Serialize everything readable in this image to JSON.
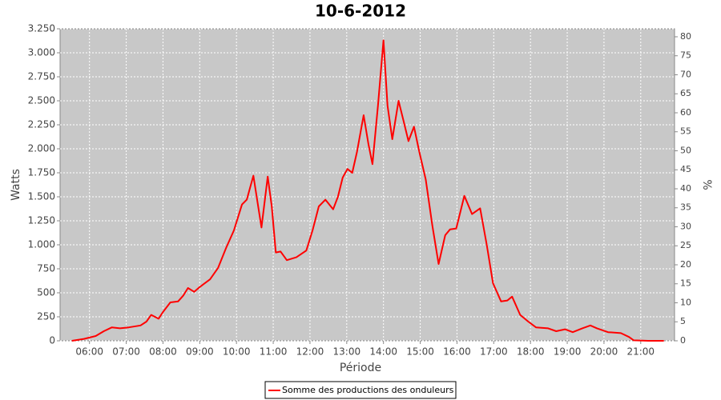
{
  "chart_data": {
    "type": "line",
    "title": "10-6-2012",
    "x_label": "Période",
    "y_label": "Watts",
    "y2_label": "%",
    "xlim": [
      5.2,
      21.92
    ],
    "xticks": [
      {
        "value": 6,
        "label": "06:00"
      },
      {
        "value": 7,
        "label": "07:00"
      },
      {
        "value": 8,
        "label": "08:00"
      },
      {
        "value": 9,
        "label": "09:00"
      },
      {
        "value": 10,
        "label": "10:00"
      },
      {
        "value": 11,
        "label": "11:00"
      },
      {
        "value": 12,
        "label": "12:00"
      },
      {
        "value": 13,
        "label": "13:00"
      },
      {
        "value": 14,
        "label": "14:00"
      },
      {
        "value": 15,
        "label": "15:00"
      },
      {
        "value": 16,
        "label": "16:00"
      },
      {
        "value": 17,
        "label": "17:00"
      },
      {
        "value": 18,
        "label": "18:00"
      },
      {
        "value": 19,
        "label": "19:00"
      },
      {
        "value": 20,
        "label": "20:00"
      },
      {
        "value": 21,
        "label": "21:00"
      }
    ],
    "ylim": [
      0,
      3250
    ],
    "yticks": [
      0,
      250,
      500,
      750,
      {
        "value": 1000,
        "label": "1.000"
      },
      {
        "value": 1250,
        "label": "1.250"
      },
      {
        "value": 1500,
        "label": "1.500"
      },
      {
        "value": 1750,
        "label": "1.750"
      },
      {
        "value": 2000,
        "label": "2.000"
      },
      {
        "value": 2250,
        "label": "2.250"
      },
      {
        "value": 2500,
        "label": "2.500"
      },
      {
        "value": 2750,
        "label": "2.750"
      },
      {
        "value": 3000,
        "label": "3.000"
      },
      {
        "value": 3250,
        "label": "3.250"
      }
    ],
    "y2lim": [
      0,
      82.1
    ],
    "y2ticks": [
      0,
      5,
      10,
      15,
      20,
      25,
      30,
      35,
      40,
      45,
      50,
      55,
      60,
      65,
      70,
      75,
      80
    ],
    "grid": true,
    "x": [
      5.52,
      5.85,
      6.17,
      6.39,
      6.61,
      6.83,
      7.07,
      7.39,
      7.55,
      7.68,
      7.88,
      8.0,
      8.2,
      8.41,
      8.55,
      8.68,
      8.85,
      9.0,
      9.28,
      9.5,
      9.72,
      9.93,
      10.15,
      10.28,
      10.46,
      10.57,
      10.68,
      10.85,
      10.96,
      11.07,
      11.2,
      11.37,
      11.63,
      11.9,
      12.07,
      12.24,
      12.42,
      12.63,
      12.76,
      12.89,
      13.02,
      13.15,
      13.28,
      13.46,
      13.59,
      13.7,
      13.85,
      14.0,
      14.11,
      14.24,
      14.41,
      14.54,
      14.68,
      14.83,
      14.98,
      15.15,
      15.33,
      15.5,
      15.68,
      15.81,
      15.98,
      16.2,
      16.41,
      16.63,
      16.81,
      16.98,
      17.2,
      17.37,
      17.5,
      17.72,
      17.94,
      18.15,
      18.48,
      18.7,
      18.94,
      19.15,
      19.41,
      19.63,
      19.81,
      20.11,
      20.46,
      20.68,
      20.81,
      21.2,
      21.63
    ],
    "series": [
      {
        "name": "Somme des productions des onduleurs",
        "color": "#ff0000",
        "values": [
          0,
          20,
          50,
          100,
          140,
          130,
          140,
          160,
          200,
          270,
          230,
          300,
          400,
          410,
          470,
          550,
          510,
          560,
          640,
          760,
          970,
          1150,
          1420,
          1470,
          1720,
          1450,
          1180,
          1710,
          1400,
          920,
          930,
          840,
          870,
          940,
          1150,
          1400,
          1470,
          1370,
          1500,
          1700,
          1790,
          1750,
          1970,
          2350,
          2050,
          1840,
          2450,
          3130,
          2450,
          2100,
          2500,
          2300,
          2080,
          2230,
          1960,
          1680,
          1200,
          800,
          1100,
          1160,
          1170,
          1510,
          1320,
          1380,
          1000,
          600,
          410,
          420,
          460,
          270,
          200,
          140,
          130,
          100,
          120,
          90,
          130,
          160,
          130,
          90,
          80,
          40,
          5,
          0,
          0
        ]
      }
    ]
  }
}
